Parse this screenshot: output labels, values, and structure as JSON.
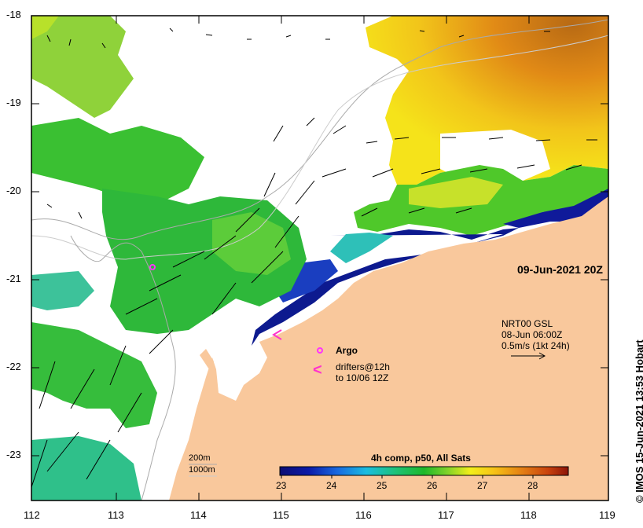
{
  "map": {
    "date_label": "09-Jun-2021 20Z",
    "credit": "IMOS 15-Jun-2021 13:53 Hobart",
    "copyright_symbol": "©",
    "y_ticks": [
      "-18",
      "-19",
      "-20",
      "-21",
      "-22",
      "-23"
    ],
    "x_ticks": [
      "112",
      "113",
      "114",
      "115",
      "116",
      "117",
      "118",
      "119"
    ],
    "legend": {
      "argo_label": "Argo",
      "drifters_line1": "drifters@12h",
      "drifters_line2": "to 10/06 12Z",
      "drifter_symbol": "<"
    },
    "currents": {
      "source": "NRT00 GSL",
      "time": "08-Jun 06:00Z",
      "scale": "0.5m/s (1kt 24h)"
    },
    "bathymetry": {
      "contour1": "200m",
      "contour2": "1000m"
    },
    "colorbar": {
      "title": "4h comp, p50, All Sats",
      "ticks": [
        "23",
        "24",
        "25",
        "26",
        "27",
        "28"
      ]
    },
    "colors": {
      "land": "#f9c89c",
      "argo": "#ff33ff",
      "drifter": "#ff33cc"
    }
  }
}
